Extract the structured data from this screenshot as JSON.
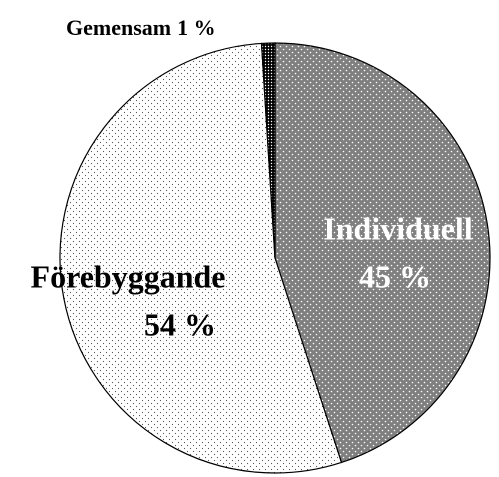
{
  "chart_data": {
    "type": "pie",
    "categories": [
      "Individuell",
      "Förebyggande",
      "Gemensam"
    ],
    "values": [
      45,
      54,
      1
    ],
    "value_labels": [
      "45 %",
      "54 %",
      "1 %"
    ],
    "colors": [
      "#7f7f7f",
      "#ffffff",
      "#000000"
    ]
  }
}
